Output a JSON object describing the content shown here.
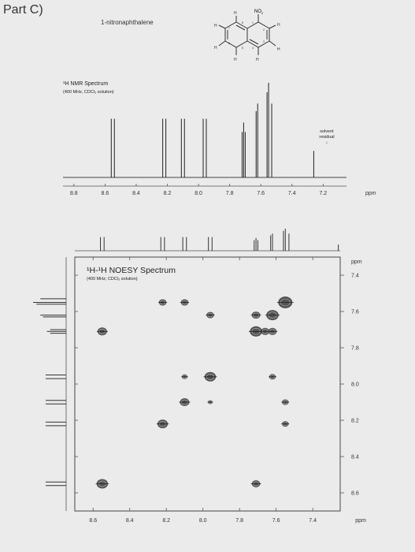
{
  "page": {
    "title": "Part C)",
    "compound": "1-nitronaphthalene"
  },
  "structure": {
    "substituent": "NO",
    "substituent_sub": "2",
    "atom_labels": [
      "H",
      "8",
      "1",
      "2",
      "H",
      "H",
      "7",
      "H",
      "6",
      "5",
      "4",
      "3",
      "H",
      "H",
      "H"
    ]
  },
  "h1_spectrum": {
    "title": "¹H NMR Spectrum",
    "conditions": "(400 MHz, CDCl₃ solution)",
    "axis_unit": "ppm",
    "solvent_label_1": "solvent",
    "solvent_label_2": "residual",
    "solvent_arrow": "↓"
  },
  "noesy": {
    "title": "¹H-¹H NOESY Spectrum",
    "conditions": "(400 MHz; CDCl₃ solution)",
    "f1_unit": "ppm",
    "f2_unit": "ppm"
  },
  "chart_data": [
    {
      "type": "line",
      "name": "1H NMR",
      "x_axis": {
        "reversed": true,
        "range": [
          8.87,
          7.05
        ],
        "ticks": [
          8.8,
          8.6,
          8.4,
          8.2,
          8.0,
          7.8,
          7.6,
          7.4,
          7.2
        ],
        "tick_labels": [
          "8.8",
          "8.6",
          "8.4",
          "8.2",
          "8.0",
          "7.8",
          "7.6",
          "7.4",
          "7.2"
        ]
      },
      "peaks": [
        {
          "ppm": 8.56,
          "height": 0.62
        },
        {
          "ppm": 8.54,
          "height": 0.62
        },
        {
          "ppm": 8.23,
          "height": 0.62
        },
        {
          "ppm": 8.21,
          "height": 0.62
        },
        {
          "ppm": 8.11,
          "height": 0.62
        },
        {
          "ppm": 8.09,
          "height": 0.62
        },
        {
          "ppm": 7.97,
          "height": 0.62
        },
        {
          "ppm": 7.95,
          "height": 0.62
        },
        {
          "ppm": 7.72,
          "height": 0.48
        },
        {
          "ppm": 7.71,
          "height": 0.58
        },
        {
          "ppm": 7.7,
          "height": 0.48
        },
        {
          "ppm": 7.63,
          "height": 0.7
        },
        {
          "ppm": 7.62,
          "height": 0.78
        },
        {
          "ppm": 7.56,
          "height": 0.9
        },
        {
          "ppm": 7.55,
          "height": 1.0
        },
        {
          "ppm": 7.53,
          "height": 0.78
        },
        {
          "ppm": 7.26,
          "height": 0.28
        }
      ]
    },
    {
      "type": "heatmap",
      "name": "1H-1H NOESY",
      "x_axis": {
        "reversed": true,
        "range": [
          8.7,
          7.25
        ],
        "ticks": [
          8.6,
          8.4,
          8.2,
          8.0,
          7.8,
          7.6,
          7.4
        ],
        "tick_labels": [
          "8.6",
          "8.4",
          "8.2",
          "8.0",
          "7.8",
          "7.6",
          "7.4"
        ]
      },
      "y_axis": {
        "range": [
          7.3,
          8.7
        ],
        "ticks": [
          7.4,
          7.6,
          7.8,
          8.0,
          8.2,
          8.4,
          8.6
        ],
        "tick_labels": [
          "7.4",
          "7.6",
          "7.8",
          "8.0",
          "8.2",
          "8.4",
          "8.6"
        ]
      },
      "cross_peaks": [
        {
          "x": 8.55,
          "y": 7.71,
          "size": 1
        },
        {
          "x": 8.55,
          "y": 8.55,
          "size": 1.2
        },
        {
          "x": 8.22,
          "y": 8.22,
          "size": 1.1
        },
        {
          "x": 8.1,
          "y": 8.1,
          "size": 1.0
        },
        {
          "x": 7.96,
          "y": 7.96,
          "size": 1.2
        },
        {
          "x": 7.71,
          "y": 7.71,
          "size": 1.3
        },
        {
          "x": 7.62,
          "y": 7.62,
          "size": 1.3
        },
        {
          "x": 7.55,
          "y": 7.55,
          "size": 1.5
        },
        {
          "x": 8.22,
          "y": 7.55,
          "size": 0.8
        },
        {
          "x": 8.1,
          "y": 7.55,
          "size": 0.8
        },
        {
          "x": 7.96,
          "y": 7.62,
          "size": 0.8
        },
        {
          "x": 8.1,
          "y": 7.96,
          "size": 0.6
        },
        {
          "x": 7.96,
          "y": 8.1,
          "size": 0.5
        },
        {
          "x": 7.71,
          "y": 7.62,
          "size": 0.9
        },
        {
          "x": 7.62,
          "y": 7.71,
          "size": 0.9
        },
        {
          "x": 7.66,
          "y": 7.71,
          "size": 0.9
        },
        {
          "x": 7.62,
          "y": 7.96,
          "size": 0.7
        },
        {
          "x": 7.55,
          "y": 8.1,
          "size": 0.7
        },
        {
          "x": 7.55,
          "y": 8.22,
          "size": 0.7
        },
        {
          "x": 7.71,
          "y": 8.55,
          "size": 0.9
        }
      ]
    }
  ]
}
